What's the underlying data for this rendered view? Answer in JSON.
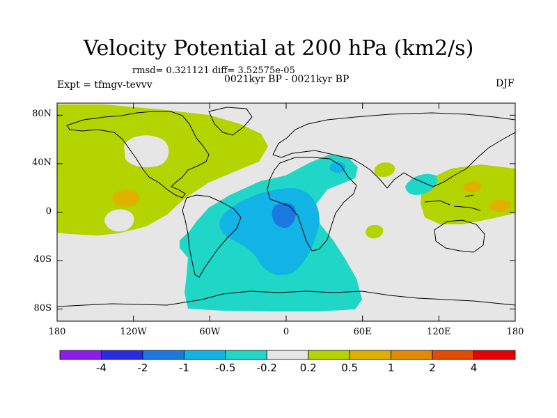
{
  "header": {
    "title": "Velocity Potential at 200 hPa (km2/s)",
    "stats": "rmsd= 0.321121 diff= 3.52575e-05",
    "period": "0021kyr BP - 0021kyr BP",
    "experiment": "Expt = tfmgv-tevvv",
    "season": "DJF"
  },
  "axes": {
    "y_ticks": [
      {
        "label": "80N",
        "lat": 80
      },
      {
        "label": "40N",
        "lat": 40
      },
      {
        "label": "0",
        "lat": 0
      },
      {
        "label": "40S",
        "lat": -40
      },
      {
        "label": "80S",
        "lat": -80
      }
    ],
    "x_ticks": [
      {
        "label": "180",
        "lon": -180
      },
      {
        "label": "120W",
        "lon": -120
      },
      {
        "label": "60W",
        "lon": -60
      },
      {
        "label": "0",
        "lon": 0
      },
      {
        "label": "60E",
        "lon": 60
      },
      {
        "label": "120E",
        "lon": 120
      },
      {
        "label": "180",
        "lon": 180
      }
    ]
  },
  "colorbar": {
    "colors": [
      "#8b1de8",
      "#2b2be0",
      "#1a78e0",
      "#12b4e6",
      "#20d6c6",
      "#e6e6e6",
      "#b4d400",
      "#e0b000",
      "#e48a00",
      "#e44a00",
      "#e60000"
    ],
    "labels": [
      "-4",
      "-2",
      "-1",
      "-0.5",
      "-0.2",
      "0.2",
      "0.5",
      "1",
      "2",
      "4"
    ]
  },
  "map_colors": {
    "background": "#e6e6e6",
    "neg_02": "#20d6c6",
    "neg_05": "#12b4e6",
    "neg_1": "#1a78e0",
    "pos_02": "#b4d400",
    "pos_05": "#e0b000"
  }
}
